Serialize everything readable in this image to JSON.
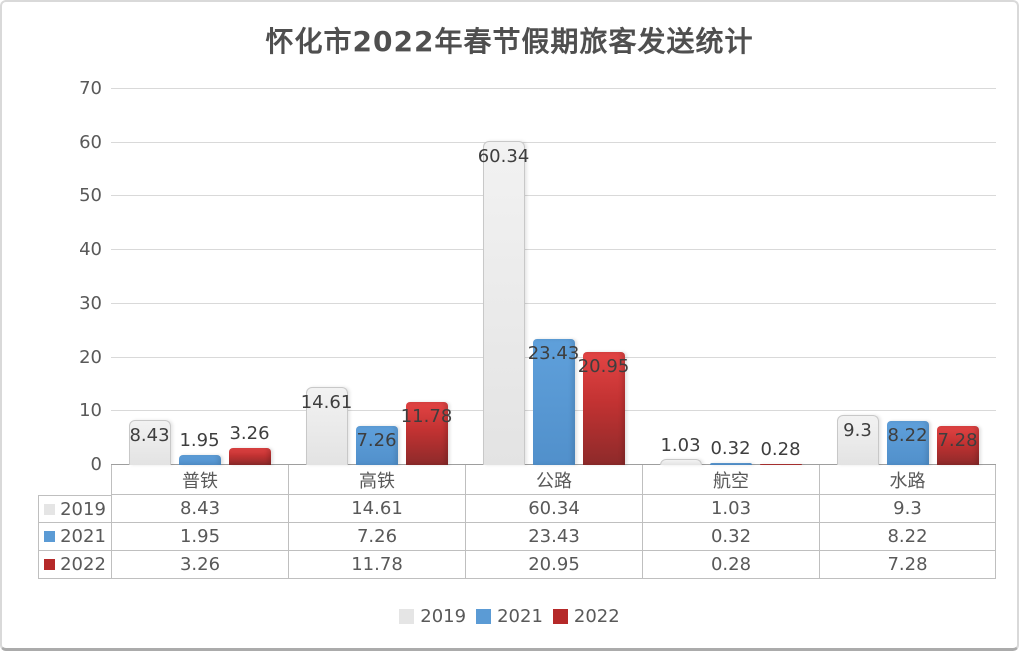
{
  "chart_data": {
    "type": "bar",
    "title": "怀化市2022年春节假期旅客发送统计",
    "categories": [
      "普铁",
      "高铁",
      "公路",
      "航空",
      "水路"
    ],
    "series": [
      {
        "name": "2019",
        "color": "#E5E5E5",
        "values": [
          8.43,
          14.61,
          60.34,
          1.03,
          9.3
        ]
      },
      {
        "name": "2021",
        "color": "#5B9BD5",
        "values": [
          1.95,
          7.26,
          23.43,
          0.32,
          8.22
        ]
      },
      {
        "name": "2022",
        "color": "#B52929",
        "values": [
          3.26,
          11.78,
          20.95,
          0.28,
          7.28
        ]
      }
    ],
    "ylim": [
      0,
      70
    ],
    "yticks": [
      0,
      10,
      20,
      30,
      40,
      50,
      60,
      70
    ],
    "grid": true,
    "data_labels": true,
    "data_table": true,
    "legend_position": "bottom"
  },
  "colors": {
    "grid": "#D9D9D9",
    "axis_line": "#9E9E9E",
    "table_border": "#BFBFBF",
    "text": "#595959",
    "title_text": "#4F4F4F",
    "frame_border": "#D9D9D9"
  }
}
